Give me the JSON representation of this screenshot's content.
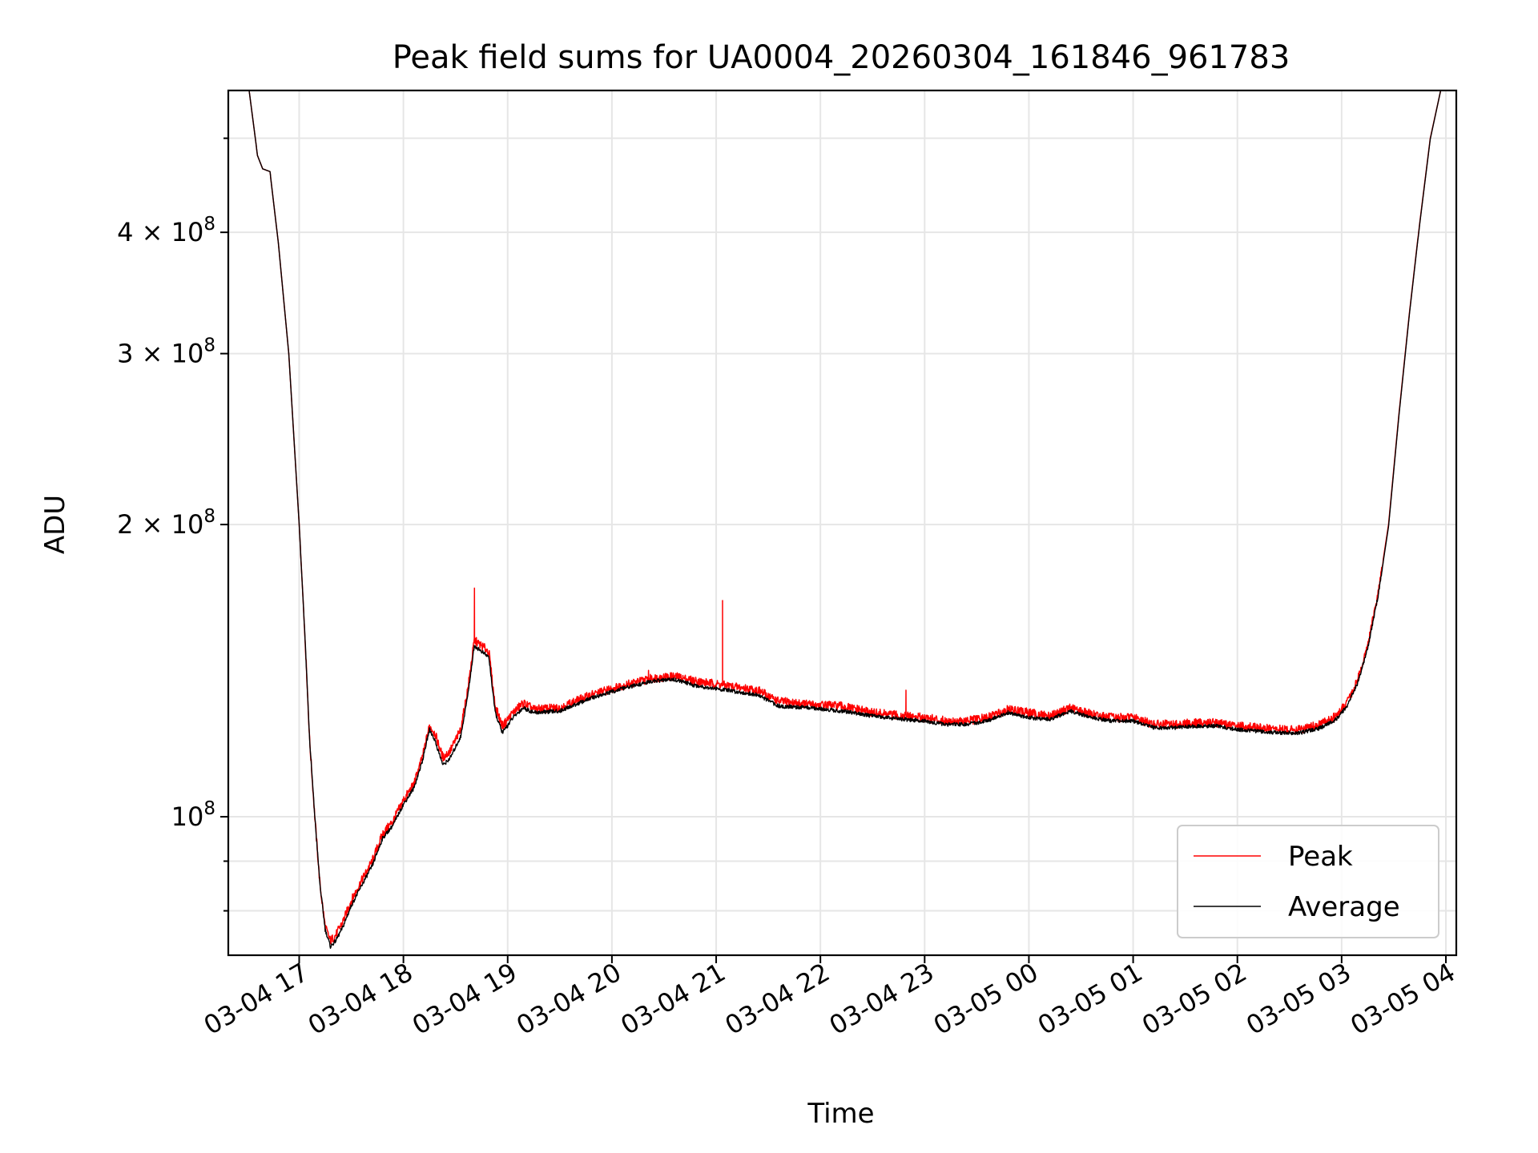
{
  "chart_data": {
    "type": "line",
    "title": "Peak field sums for UA0004_20260304_161846_961783",
    "xlabel": "Time",
    "ylabel": "ADU",
    "yscale": "log",
    "ylim": [
      72000000,
      560000000
    ],
    "xlim_hours": [
      16.32,
      28.1
    ],
    "x_ticks": [
      {
        "hour": 17,
        "label": "03-04 17"
      },
      {
        "hour": 18,
        "label": "03-04 18"
      },
      {
        "hour": 19,
        "label": "03-04 19"
      },
      {
        "hour": 20,
        "label": "03-04 20"
      },
      {
        "hour": 21,
        "label": "03-04 21"
      },
      {
        "hour": 22,
        "label": "03-04 22"
      },
      {
        "hour": 23,
        "label": "03-04 23"
      },
      {
        "hour": 24,
        "label": "03-05 00"
      },
      {
        "hour": 25,
        "label": "03-05 01"
      },
      {
        "hour": 26,
        "label": "03-05 02"
      },
      {
        "hour": 27,
        "label": "03-05 03"
      },
      {
        "hour": 28,
        "label": "03-05 04"
      }
    ],
    "y_major_ticks": [
      {
        "value": 100000000,
        "mantissa": "",
        "exponent": "8"
      },
      {
        "value": 200000000,
        "mantissa": "2",
        "exponent": "8"
      },
      {
        "value": 300000000,
        "mantissa": "3",
        "exponent": "8"
      },
      {
        "value": 400000000,
        "mantissa": "4",
        "exponent": "8"
      }
    ],
    "y_minor_ticks": [
      80000000,
      90000000,
      500000000
    ],
    "grid": true,
    "legend_position": "lower-right",
    "series": [
      {
        "name": "Peak",
        "color": "#ff0000",
        "points": [
          [
            16.52,
            560000000
          ],
          [
            16.6,
            480000000
          ],
          [
            16.65,
            465000000
          ],
          [
            16.72,
            462000000
          ],
          [
            16.8,
            390000000
          ],
          [
            16.9,
            300000000
          ],
          [
            17.0,
            200000000
          ],
          [
            17.06,
            150000000
          ],
          [
            17.1,
            120000000
          ],
          [
            17.15,
            100000000
          ],
          [
            17.2,
            85000000
          ],
          [
            17.25,
            77000000
          ],
          [
            17.3,
            74500000
          ],
          [
            17.35,
            75500000
          ],
          [
            17.42,
            78000000
          ],
          [
            17.5,
            82000000
          ],
          [
            17.6,
            86000000
          ],
          [
            17.7,
            90000000
          ],
          [
            17.8,
            96000000
          ],
          [
            17.9,
            99000000
          ],
          [
            18.0,
            104000000
          ],
          [
            18.1,
            108000000
          ],
          [
            18.18,
            115000000
          ],
          [
            18.25,
            124000000
          ],
          [
            18.3,
            122000000
          ],
          [
            18.38,
            115000000
          ],
          [
            18.45,
            117000000
          ],
          [
            18.55,
            123000000
          ],
          [
            18.62,
            136000000
          ],
          [
            18.68,
            152000000
          ],
          [
            18.75,
            150000000
          ],
          [
            18.82,
            148000000
          ],
          [
            18.88,
            130000000
          ],
          [
            18.95,
            124000000
          ],
          [
            19.05,
            128000000
          ],
          [
            19.15,
            131000000
          ],
          [
            19.25,
            129000000
          ],
          [
            19.5,
            129500000
          ],
          [
            19.8,
            133500000
          ],
          [
            20.1,
            136500000
          ],
          [
            20.4,
            139000000
          ],
          [
            20.6,
            139500000
          ],
          [
            20.8,
            138000000
          ],
          [
            21.0,
            137000000
          ],
          [
            21.2,
            136000000
          ],
          [
            21.4,
            135000000
          ],
          [
            21.6,
            131500000
          ],
          [
            21.9,
            130500000
          ],
          [
            22.2,
            130000000
          ],
          [
            22.5,
            128000000
          ],
          [
            22.8,
            127000000
          ],
          [
            23.0,
            126500000
          ],
          [
            23.2,
            125500000
          ],
          [
            23.4,
            125500000
          ],
          [
            23.6,
            126500000
          ],
          [
            23.8,
            129000000
          ],
          [
            24.0,
            128000000
          ],
          [
            24.2,
            127000000
          ],
          [
            24.4,
            129500000
          ],
          [
            24.6,
            127500000
          ],
          [
            24.8,
            126500000
          ],
          [
            25.0,
            126500000
          ],
          [
            25.2,
            124500000
          ],
          [
            25.4,
            124500000
          ],
          [
            25.6,
            125000000
          ],
          [
            25.8,
            125000000
          ],
          [
            26.0,
            124000000
          ],
          [
            26.2,
            123500000
          ],
          [
            26.4,
            123000000
          ],
          [
            26.6,
            123000000
          ],
          [
            26.8,
            124500000
          ],
          [
            26.95,
            127000000
          ],
          [
            27.05,
            131000000
          ],
          [
            27.15,
            138000000
          ],
          [
            27.25,
            150000000
          ],
          [
            27.35,
            170000000
          ],
          [
            27.45,
            200000000
          ],
          [
            27.55,
            260000000
          ],
          [
            27.65,
            330000000
          ],
          [
            27.75,
            410000000
          ],
          [
            27.85,
            500000000
          ],
          [
            27.95,
            560000000
          ]
        ],
        "spikes": [
          [
            18.68,
            172000000
          ],
          [
            20.35,
            141500000
          ],
          [
            21.06,
            167000000
          ],
          [
            22.82,
            135000000
          ]
        ]
      },
      {
        "name": "Average",
        "color": "#000000",
        "points": [
          [
            16.52,
            560000000
          ],
          [
            16.6,
            480000000
          ],
          [
            16.65,
            465000000
          ],
          [
            16.72,
            462000000
          ],
          [
            16.8,
            390000000
          ],
          [
            16.9,
            300000000
          ],
          [
            17.0,
            200000000
          ],
          [
            17.06,
            150000000
          ],
          [
            17.1,
            120000000
          ],
          [
            17.15,
            100000000
          ],
          [
            17.2,
            85000000
          ],
          [
            17.25,
            76500000
          ],
          [
            17.3,
            73500000
          ],
          [
            17.35,
            74500000
          ],
          [
            17.42,
            77000000
          ],
          [
            17.5,
            81000000
          ],
          [
            17.6,
            85000000
          ],
          [
            17.7,
            89000000
          ],
          [
            17.8,
            95000000
          ],
          [
            17.9,
            98000000
          ],
          [
            18.0,
            103000000
          ],
          [
            18.1,
            107000000
          ],
          [
            18.18,
            114000000
          ],
          [
            18.25,
            123000000
          ],
          [
            18.3,
            120000000
          ],
          [
            18.38,
            113000000
          ],
          [
            18.45,
            115000000
          ],
          [
            18.55,
            121000000
          ],
          [
            18.62,
            134000000
          ],
          [
            18.68,
            150000000
          ],
          [
            18.75,
            148000000
          ],
          [
            18.82,
            146000000
          ],
          [
            18.88,
            128000000
          ],
          [
            18.95,
            122000000
          ],
          [
            19.05,
            126500000
          ],
          [
            19.15,
            129500000
          ],
          [
            19.25,
            128000000
          ],
          [
            19.5,
            128500000
          ],
          [
            19.8,
            132500000
          ],
          [
            20.1,
            135500000
          ],
          [
            20.4,
            138000000
          ],
          [
            20.6,
            138500000
          ],
          [
            20.8,
            136500000
          ],
          [
            21.0,
            135500000
          ],
          [
            21.2,
            134500000
          ],
          [
            21.4,
            133500000
          ],
          [
            21.6,
            130000000
          ],
          [
            21.9,
            129500000
          ],
          [
            22.2,
            128500000
          ],
          [
            22.5,
            127000000
          ],
          [
            22.8,
            126000000
          ],
          [
            23.0,
            125500000
          ],
          [
            23.2,
            124500000
          ],
          [
            23.4,
            124500000
          ],
          [
            23.6,
            125500000
          ],
          [
            23.8,
            128000000
          ],
          [
            24.0,
            126500000
          ],
          [
            24.2,
            126000000
          ],
          [
            24.4,
            128500000
          ],
          [
            24.6,
            126500000
          ],
          [
            24.8,
            125500000
          ],
          [
            25.0,
            125500000
          ],
          [
            25.2,
            123500000
          ],
          [
            25.4,
            123500000
          ],
          [
            25.6,
            124000000
          ],
          [
            25.8,
            124000000
          ],
          [
            26.0,
            123000000
          ],
          [
            26.2,
            122500000
          ],
          [
            26.4,
            122000000
          ],
          [
            26.6,
            122000000
          ],
          [
            26.8,
            123500000
          ],
          [
            26.95,
            126000000
          ],
          [
            27.05,
            130000000
          ],
          [
            27.15,
            137000000
          ],
          [
            27.25,
            149000000
          ],
          [
            27.35,
            169000000
          ],
          [
            27.45,
            199000000
          ],
          [
            27.55,
            259000000
          ],
          [
            27.65,
            329000000
          ],
          [
            27.75,
            409000000
          ],
          [
            27.85,
            499000000
          ],
          [
            27.95,
            560000000
          ]
        ],
        "spikes": []
      }
    ]
  }
}
